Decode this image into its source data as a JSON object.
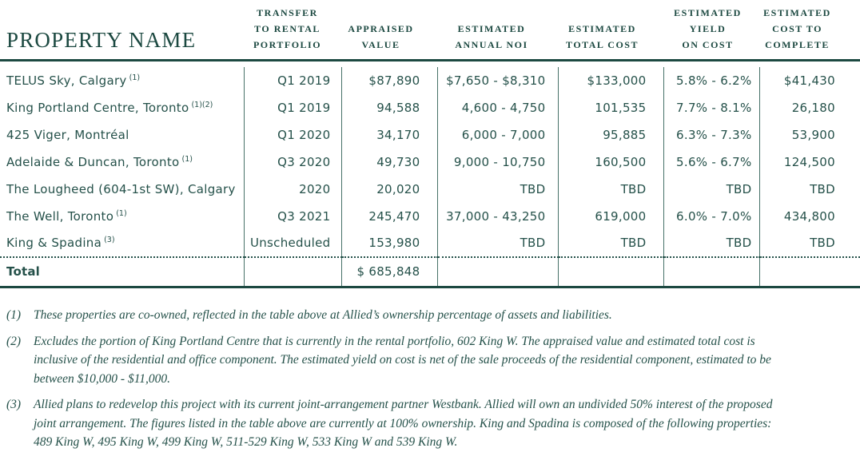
{
  "page": {
    "background": "#ffffff",
    "accent_green": "#1c4941",
    "text_green": "#25514a"
  },
  "table": {
    "property_header": "PROPERTY NAME",
    "column_headers": [
      {
        "lines": [
          "TRANSFER",
          "TO RENTAL",
          "PORTFOLIO"
        ]
      },
      {
        "lines": [
          "APPRAISED",
          "VALUE"
        ]
      },
      {
        "lines": [
          "ESTIMATED",
          "ANNUAL NOI"
        ]
      },
      {
        "lines": [
          "ESTIMATED",
          "TOTAL COST"
        ]
      },
      {
        "lines": [
          "ESTIMATED",
          "YIELD",
          "ON COST"
        ]
      },
      {
        "lines": [
          "ESTIMATED",
          "COST TO",
          "COMPLETE"
        ]
      }
    ],
    "rows": [
      {
        "name": "TELUS Sky, Calgary",
        "footnote_ref": "(1)",
        "transfer": "Q1 2019",
        "appraised_value": "$87,890",
        "annual_noi": "$7,650 - $8,310",
        "total_cost": "$133,000",
        "yield_on_cost": "5.8% - 6.2%",
        "cost_to_complete": "$41,430"
      },
      {
        "name": "King Portland Centre, Toronto",
        "footnote_ref": "(1)(2)",
        "transfer": "Q1 2019",
        "appraised_value": "94,588",
        "annual_noi": "4,600 - 4,750",
        "total_cost": "101,535",
        "yield_on_cost": "7.7% - 8.1%",
        "cost_to_complete": "26,180"
      },
      {
        "name": "425 Viger, Montréal",
        "footnote_ref": "",
        "transfer": "Q1 2020",
        "appraised_value": "34,170",
        "annual_noi": "6,000 - 7,000",
        "total_cost": "95,885",
        "yield_on_cost": "6.3% - 7.3%",
        "cost_to_complete": "53,900"
      },
      {
        "name": "Adelaide & Duncan, Toronto",
        "footnote_ref": "(1)",
        "transfer": "Q3 2020",
        "appraised_value": "49,730",
        "annual_noi": "9,000 - 10,750",
        "total_cost": "160,500",
        "yield_on_cost": "5.6% - 6.7%",
        "cost_to_complete": "124,500"
      },
      {
        "name": "The Lougheed (604-1st SW), Calgary",
        "footnote_ref": "",
        "transfer": "2020",
        "appraised_value": "20,020",
        "annual_noi": "TBD",
        "total_cost": "TBD",
        "yield_on_cost": "TBD",
        "cost_to_complete": "TBD"
      },
      {
        "name": "The Well, Toronto",
        "footnote_ref": "(1)",
        "transfer": "Q3 2021",
        "appraised_value": "245,470",
        "annual_noi": "37,000 - 43,250",
        "total_cost": "619,000",
        "yield_on_cost": "6.0% - 7.0%",
        "cost_to_complete": "434,800"
      },
      {
        "name": "King & Spadina",
        "footnote_ref": "(3)",
        "transfer": "Unscheduled",
        "appraised_value": "153,980",
        "annual_noi": "TBD",
        "total_cost": "TBD",
        "yield_on_cost": "TBD",
        "cost_to_complete": "TBD"
      }
    ],
    "total_row": {
      "label": "Total",
      "appraised_value": "$ 685,848"
    }
  },
  "footnotes": [
    {
      "marker": "(1)",
      "lines": [
        "These properties are co-owned, reflected in the table above at Allied’s ownership percentage of assets and liabilities."
      ]
    },
    {
      "marker": "(2)",
      "lines": [
        "Excludes the portion of King Portland Centre that is currently in the rental portfolio, 602 King W. The appraised value and estimated total cost is",
        "inclusive of the residential and office component. The estimated yield on cost is net of the sale proceeds of the residential component, estimated to be",
        "between $10,000 - $11,000."
      ]
    },
    {
      "marker": "(3)",
      "lines": [
        "Allied plans to redevelop this project with its current joint-arrangement partner Westbank. Allied will own an undivided 50% interest of the proposed",
        "joint arrangement. The figures listed in the table above are currently at 100% ownership. King and Spadina is composed of the following properties:",
        "489 King W, 495 King W, 499 King W, 511-529 King W, 533 King W and 539 King W."
      ]
    }
  ]
}
